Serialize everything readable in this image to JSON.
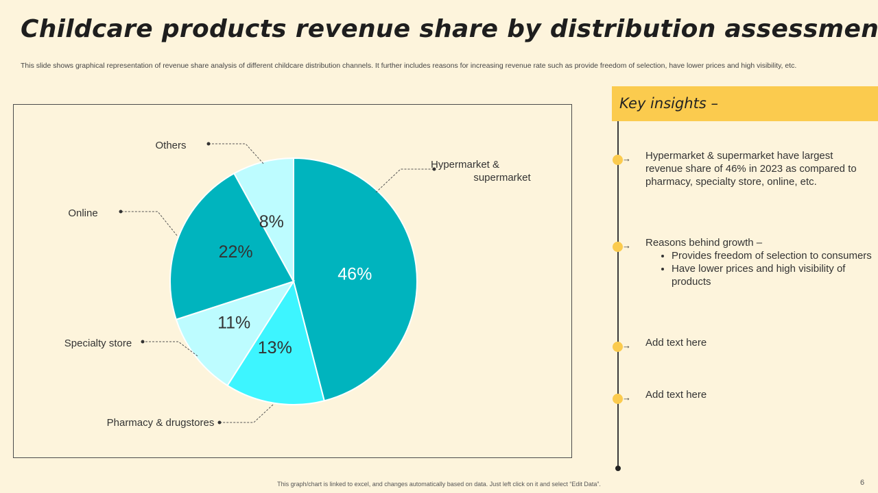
{
  "title": "Childcare products revenue share by distribution assessment",
  "subtitle": "This slide shows graphical representation of revenue share analysis of different childcare distribution channels. It further includes reasons for increasing revenue rate such as provide freedom of selection, have lower prices and high visibility, etc.",
  "chart_data": {
    "type": "pie",
    "title": "",
    "start_angle_deg": 0,
    "direction": "clockwise",
    "slices": [
      {
        "name": "Hypermarket & supermarket",
        "value": 46,
        "label": "46%",
        "color": "#00b4be"
      },
      {
        "name": "Pharmacy & drugstores",
        "value": 13,
        "label": "13%",
        "color": "#3df5ff"
      },
      {
        "name": "Specialty store",
        "value": 11,
        "label": "11%",
        "color": "#bdfcff"
      },
      {
        "name": "Online",
        "value": 22,
        "label": "22%",
        "color": "#00b4be"
      },
      {
        "name": "Others",
        "value": 8,
        "label": "8%",
        "color": "#bdfcff"
      }
    ]
  },
  "insights": {
    "header": "Key insights –",
    "items": [
      {
        "text": "Hypermarket & supermarket have largest revenue share of 46% in 2023 as compared to pharmacy, specialty store, online, etc."
      },
      {
        "text": "Reasons behind growth –",
        "bullets": [
          "Provides freedom of selection to consumers",
          "Have lower prices and high visibility of products"
        ]
      },
      {
        "text": "Add text here"
      },
      {
        "text": "Add text here"
      }
    ]
  },
  "footer": "This graph/chart is linked to excel, and changes automatically based on data. Just left click on it and select “Edit Data”.",
  "page_number": "6",
  "colors": {
    "background": "#fdf4dc",
    "accent": "#fbcb4e"
  }
}
